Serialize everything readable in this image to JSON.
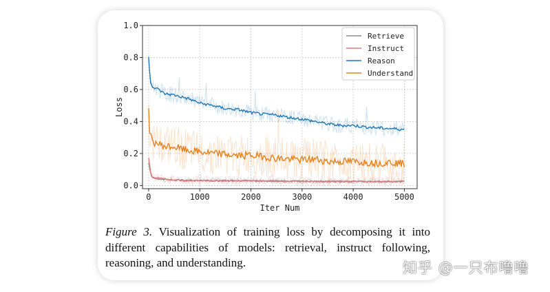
{
  "chart_data": {
    "type": "line",
    "xlabel": "Iter Num",
    "ylabel": "Loss",
    "xlim": [
      -120,
      5250
    ],
    "ylim": [
      -0.02,
      1.0
    ],
    "xticks": [
      0,
      1000,
      2000,
      3000,
      4000,
      5000
    ],
    "yticks": [
      0.0,
      0.2,
      0.4,
      0.6,
      0.8,
      1.0
    ],
    "ytick_labels": [
      "0.0",
      "0.2",
      "0.4",
      "0.6",
      "0.8",
      "1.0"
    ],
    "grid": true,
    "legend_position": "top-right",
    "series": [
      {
        "name": "Retrieve",
        "color": "#8c8c8c",
        "x": [
          0,
          50,
          100,
          200,
          300,
          500,
          750,
          1000,
          1500,
          2000,
          2500,
          3000,
          3500,
          4000,
          4500,
          5000
        ],
        "values": [
          0.14,
          0.06,
          0.045,
          0.04,
          0.038,
          0.035,
          0.033,
          0.032,
          0.03,
          0.03,
          0.028,
          0.027,
          0.026,
          0.025,
          0.025,
          0.024
        ]
      },
      {
        "name": "Instruct",
        "color": "#e07b7b",
        "x": [
          0,
          50,
          100,
          200,
          300,
          500,
          750,
          1000,
          1500,
          2000,
          2500,
          3000,
          3500,
          4000,
          4500,
          5000
        ],
        "values": [
          0.17,
          0.06,
          0.05,
          0.045,
          0.04,
          0.035,
          0.03,
          0.03,
          0.03,
          0.028,
          0.028,
          0.026,
          0.025,
          0.025,
          0.024,
          0.025
        ]
      },
      {
        "name": "Reason",
        "color": "#1f77b4",
        "x": [
          0,
          30,
          60,
          100,
          200,
          300,
          500,
          750,
          1000,
          1250,
          1500,
          1750,
          2000,
          2250,
          2500,
          2750,
          3000,
          3250,
          3500,
          3750,
          4000,
          4250,
          4500,
          4750,
          5000
        ],
        "values": [
          0.81,
          0.66,
          0.63,
          0.61,
          0.6,
          0.575,
          0.565,
          0.545,
          0.515,
          0.5,
          0.48,
          0.475,
          0.455,
          0.445,
          0.44,
          0.425,
          0.415,
          0.4,
          0.385,
          0.375,
          0.375,
          0.365,
          0.36,
          0.355,
          0.35
        ]
      },
      {
        "name": "Understand",
        "color": "#e8801e",
        "x": [
          0,
          20,
          50,
          100,
          200,
          300,
          500,
          750,
          1000,
          1250,
          1500,
          1750,
          2000,
          2250,
          2500,
          2750,
          3000,
          3250,
          3500,
          3750,
          4000,
          4250,
          4500,
          4750,
          5000
        ],
        "values": [
          0.47,
          0.33,
          0.29,
          0.27,
          0.26,
          0.245,
          0.24,
          0.22,
          0.21,
          0.2,
          0.195,
          0.185,
          0.19,
          0.18,
          0.17,
          0.165,
          0.16,
          0.165,
          0.15,
          0.15,
          0.15,
          0.145,
          0.14,
          0.145,
          0.135
        ]
      }
    ]
  },
  "caption": {
    "figure_label": "Figure 3.",
    "text": " Visualization of training loss by decomposing it into different capabilities of models: retrieval, instruct following, reasoning, and understanding."
  },
  "watermark": "知乎 @一只布噜噜"
}
